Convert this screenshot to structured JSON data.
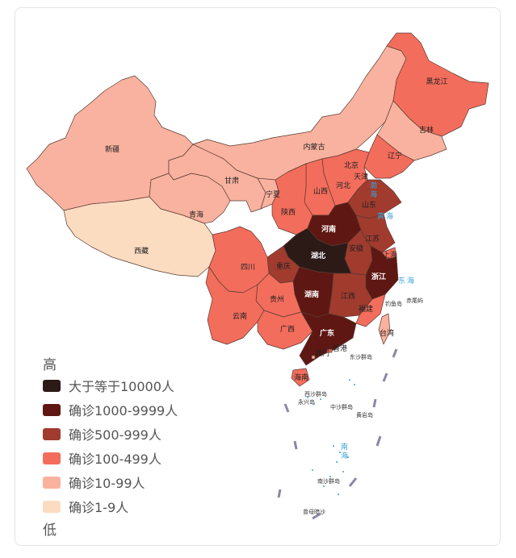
{
  "colors": {
    "c10000": "#2c1a17",
    "c1000": "#5e1712",
    "c500": "#a03b2e",
    "c100": "#f36d5c",
    "c10": "#f9b29f",
    "c1": "#fcdcc0",
    "border": "#5a3a32",
    "sea_text": "#3aa3d8"
  },
  "legend": {
    "high_label": "高",
    "low_label": "低",
    "items": [
      {
        "label": "大于等于10000人",
        "color": "#2c1a17"
      },
      {
        "label": "确诊1000-9999人",
        "color": "#5e1712"
      },
      {
        "label": "确诊500-999人",
        "color": "#a03b2e"
      },
      {
        "label": "确诊100-499人",
        "color": "#f36d5c"
      },
      {
        "label": "确诊10-99人",
        "color": "#f9b29f"
      },
      {
        "label": "确诊1-9人",
        "color": "#fcdcc0"
      }
    ]
  },
  "provinces": {
    "heilongjiang": {
      "name": "黑龙江",
      "level": "c100"
    },
    "jilin": {
      "name": "吉林",
      "level": "c10"
    },
    "liaoning": {
      "name": "辽宁",
      "level": "c100"
    },
    "neimenggu": {
      "name": "内蒙古",
      "level": "c10"
    },
    "xinjiang": {
      "name": "新疆",
      "level": "c10"
    },
    "xizang": {
      "name": "西藏",
      "level": "c1"
    },
    "qinghai": {
      "name": "青海",
      "level": "c10"
    },
    "gansu": {
      "name": "甘肃",
      "level": "c10"
    },
    "ningxia": {
      "name": "宁夏",
      "level": "c10"
    },
    "shaanxi": {
      "name": "陕西",
      "level": "c100"
    },
    "shanxi": {
      "name": "山西",
      "level": "c100"
    },
    "hebei": {
      "name": "河北",
      "level": "c100"
    },
    "beijing": {
      "name": "北京",
      "level": "c100"
    },
    "tianjin": {
      "name": "天津",
      "level": "c100"
    },
    "shandong": {
      "name": "山东",
      "level": "c500"
    },
    "henan": {
      "name": "河南",
      "level": "c1000"
    },
    "jiangsu": {
      "name": "江苏",
      "level": "c500"
    },
    "anhui": {
      "name": "安徽",
      "level": "c500"
    },
    "shanghai": {
      "name": "上海",
      "level": "c100"
    },
    "hubei": {
      "name": "湖北",
      "level": "c10000"
    },
    "sichuan": {
      "name": "四川",
      "level": "c100"
    },
    "chongqing": {
      "name": "重庆",
      "level": "c500"
    },
    "zhejiang": {
      "name": "浙江",
      "level": "c1000"
    },
    "hunan": {
      "name": "湖南",
      "level": "c1000"
    },
    "jiangxi": {
      "name": "江西",
      "level": "c500"
    },
    "guizhou": {
      "name": "贵州",
      "level": "c100"
    },
    "yunnan": {
      "name": "云南",
      "level": "c100"
    },
    "guangxi": {
      "name": "广西",
      "level": "c100"
    },
    "guangdong": {
      "name": "广东",
      "level": "c1000"
    },
    "fujian": {
      "name": "福建",
      "level": "c100"
    },
    "taiwan": {
      "name": "台湾",
      "level": "c10"
    },
    "hainan": {
      "name": "海南",
      "level": "c100"
    },
    "aomen": {
      "name": "澳门",
      "level": "c10"
    },
    "xianggang": {
      "name": "香港",
      "level": "c100"
    }
  },
  "seas": {
    "bohai": "渤海",
    "huanghai": "黄海",
    "donghai": "东海",
    "nanhai": "南海"
  },
  "islands": {
    "diaoyu": "钓鱼岛",
    "chiwei": "赤尾屿",
    "dongsha": "东沙群岛",
    "xisha": "西沙群岛",
    "yongxing": "永兴岛",
    "zhongsha": "中沙群岛",
    "huangyan": "黄岩岛",
    "nansha": "南沙群岛",
    "zengmu": "曾母暗沙"
  }
}
